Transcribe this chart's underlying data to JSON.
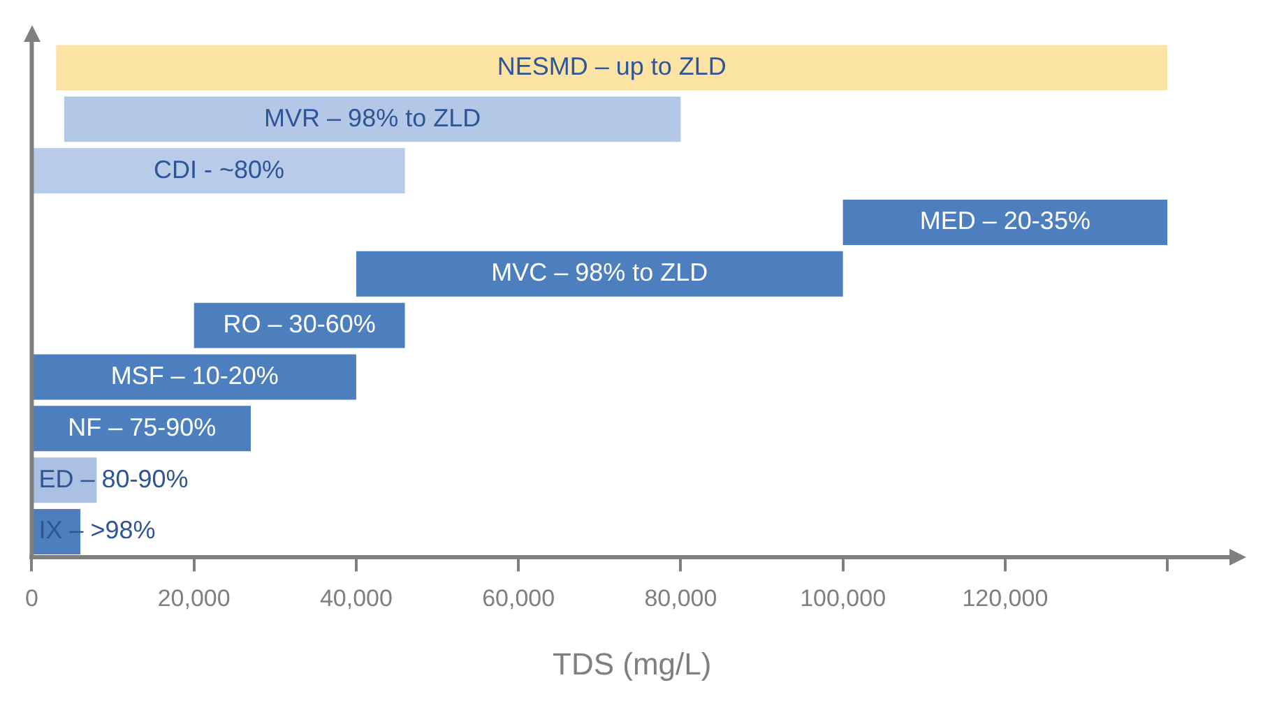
{
  "chart_data": {
    "type": "bar",
    "orientation": "horizontal",
    "xlabel": "TDS (mg/L)",
    "categories": [
      "NESMD – up to ZLD",
      "MVR – 98% to ZLD",
      "CDI - ~80%",
      "MED – 20-35%",
      "MVC – 98% to ZLD",
      "RO – 30-60%",
      "MSF – 10-20%",
      "NF – 75-90%",
      "ED – 80-90%",
      "IX – >98%"
    ],
    "base": [
      3000,
      4000,
      0,
      100000,
      40000,
      20000,
      0,
      0,
      0,
      0
    ],
    "values": [
      137000,
      76000,
      46000,
      40000,
      60000,
      26000,
      40000,
      27000,
      8000,
      6000
    ],
    "colors": [
      "#fbe3a4",
      "#b3c8e6",
      "#b8cbe8",
      "#4d7fbf",
      "#4d7fbf",
      "#4d7fbf",
      "#4d7fbf",
      "#4d7fbf",
      "#a9c0e3",
      "#4d7fbf"
    ],
    "xlim": [
      0,
      148000
    ],
    "xticks": [
      0,
      {
        "value": 20000,
        "label": "20,000"
      },
      {
        "value": 40000,
        "label": "40,000"
      },
      {
        "value": 60000,
        "label": "60,000"
      },
      {
        "value": 80000,
        "label": "80,000"
      },
      {
        "value": 100000,
        "label": "100,000"
      },
      {
        "value": 120000,
        "label": "120,000"
      },
      {
        "value": 140000,
        "label": null
      }
    ],
    "grid": false,
    "legend": false
  }
}
